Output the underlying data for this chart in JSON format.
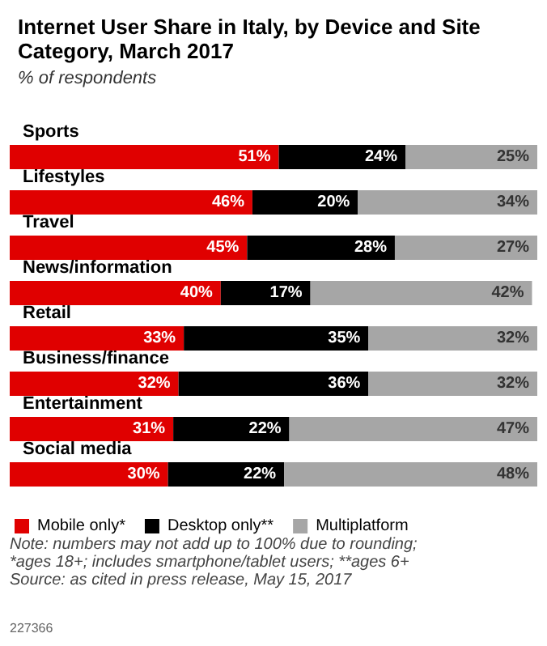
{
  "chart_data": {
    "type": "bar",
    "title": "Internet User Share in Italy, by Device and Site Category, March 2017",
    "subtitle": "% of respondents",
    "orientation": "horizontal",
    "stacked": true,
    "legend": "bottom left",
    "categories": [
      "Sports",
      "Lifestyles",
      "Travel",
      "News/information",
      "Retail",
      "Business/finance",
      "Entertainment",
      "Social media"
    ],
    "series": [
      {
        "name": "Mobile only*",
        "color": "#e00000",
        "values": [
          51,
          46,
          45,
          40,
          33,
          32,
          31,
          30
        ],
        "value_labels": [
          "51%",
          "46%",
          "45%",
          "40%",
          "33%",
          "32%",
          "31%",
          "30%"
        ]
      },
      {
        "name": "Desktop only**",
        "color": "#000000",
        "values": [
          24,
          20,
          28,
          17,
          35,
          36,
          22,
          22
        ],
        "value_labels": [
          "24%",
          "20%",
          "28%",
          "17%",
          "35%",
          "36%",
          "22%",
          "22%"
        ]
      },
      {
        "name": "Multiplatform",
        "color": "#a6a6a6",
        "values": [
          25,
          34,
          27,
          42,
          32,
          32,
          47,
          48
        ],
        "value_labels": [
          "25%",
          "34%",
          "27%",
          "42%",
          "32%",
          "32%",
          "47%",
          "48%"
        ]
      }
    ],
    "annotations": [
      "Note: numbers may not add up to 100% due to rounding; *ages 18+; includes smartphone/tablet users; **ages 6+\nSource: as cited in press release, May 15, 2017",
      "227366"
    ]
  }
}
